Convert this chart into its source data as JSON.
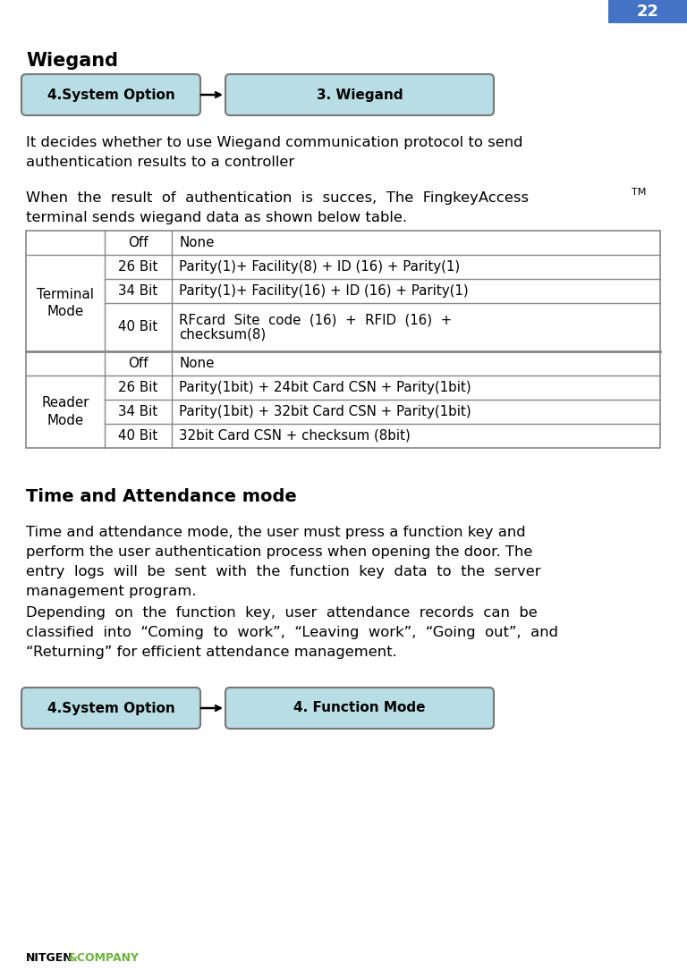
{
  "page_number": "22",
  "page_number_bg": "#4472c4",
  "page_number_color": "#ffffff",
  "background_color": "#ffffff",
  "title_wiegand": "Wiegand",
  "nav_box1_text": "4.System Option",
  "nav_box2_text_wiegand": "3. Wiegand",
  "nav_box2_text_function": "4. Function Mode",
  "nav_box_bg": "#b8dde4",
  "nav_box_border": "#777777",
  "nav_text_color": "#000000",
  "para1_line1": "It decides whether to use Wiegand communication protocol to send",
  "para1_line2": "authentication results to a controller",
  "para2_line1": "When  the  result  of  authentication  is  succes,  The  FingkeyAccess",
  "para2_sup": "TM",
  "para2_line2": "terminal sends wiegand data as shown below table.",
  "table_rows_terminal": [
    [
      "Off",
      "None"
    ],
    [
      "26 Bit",
      "Parity(1)+ Facility(8) + ID (16) + Parity(1)"
    ],
    [
      "34 Bit",
      "Parity(1)+ Facility(16) + ID (16) + Parity(1)"
    ],
    [
      "40 Bit",
      "RFcard  Site  code  (16)  +  RFID  (16)  +\nchecksum(8)"
    ]
  ],
  "table_rows_reader": [
    [
      "Off",
      "None"
    ],
    [
      "26 Bit",
      "Parity(1bit) + 24bit Card CSN + Parity(1bit)"
    ],
    [
      "34 Bit",
      "Parity(1bit) + 32bit Card CSN + Parity(1bit)"
    ],
    [
      "40 Bit",
      "32bit Card CSN + checksum (8bit)"
    ]
  ],
  "section2_title": "Time and Attendance mode",
  "section2_para1_lines": [
    "Time and attendance mode, the user must press a function key and",
    "perform the user authentication process when opening the door. The",
    "entry  logs  will  be  sent  with  the  function  key  data  to  the  server",
    "management program."
  ],
  "section2_para2_lines": [
    "Depending  on  the  function  key,  user  attendance  records  can  be",
    "classified  into  “Coming  to  work”,  “Leaving  work”,  “Going  out”,  and",
    "“Returning” for efficient attendance management."
  ],
  "footer_text1": "NITGEN",
  "footer_text2": "&COMPANY",
  "footer_color1": "#000000",
  "footer_color2": "#6db33f"
}
